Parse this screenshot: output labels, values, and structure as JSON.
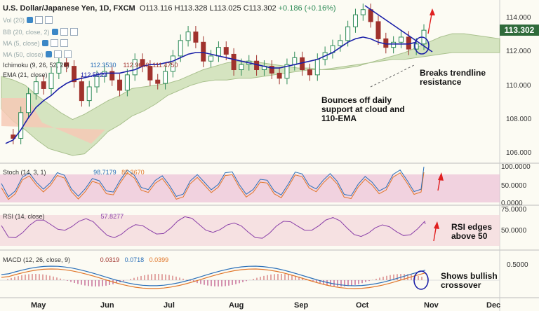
{
  "header": {
    "symbol": "U.S. Dollar/Japanese Yen, 1D, FXCM",
    "open": "O113.116",
    "high": "H113.328",
    "low": "L113.025",
    "close": "C113.302",
    "change": "+0.186 (+0.16%)"
  },
  "indicators_panel": [
    {
      "label": "Vol (20)"
    },
    {
      "label": "BB (20, close, 2)"
    },
    {
      "label": "MA (5, close)"
    },
    {
      "label": "MA (50, close)"
    }
  ],
  "ichimoku": {
    "label": "Ichimoku (9, 26, 52, 26)",
    "v1": "112.3530",
    "v2": "112.9640",
    "v3": "111.4750"
  },
  "ema": {
    "label": "EMA (21, close)",
    "value": "112.5929"
  },
  "stoch": {
    "label": "Stoch (14, 3, 1)",
    "k": "98.7179",
    "d": "85.3670"
  },
  "rsi": {
    "label": "RSI (14, close)",
    "value": "57.8277"
  },
  "macd": {
    "label": "MACD (12, 26, close, 9)",
    "v1": "0.0319",
    "v2": "0.0718",
    "v3": "0.0399"
  },
  "price_tag": "113.302",
  "annotations": {
    "trendline": "Breaks trendline resistance",
    "support": "Bounces off daily support at cloud and 110-EMA",
    "rsi": "RSI edges above 50",
    "macd": "Shows bullish crossover"
  },
  "colors": {
    "up": "#2e8b57",
    "down": "#a0322d",
    "ema": "#1a1fa8",
    "cloud": "#cfe0b8",
    "cloud_red": "#f6c9b5",
    "arrow": "#e02020"
  },
  "chart_data": {
    "type": "candlestick",
    "title": "U.S. Dollar/Japanese Yen, 1D, FXCM",
    "x_months": [
      "May",
      "Jun",
      "Jul",
      "Aug",
      "Sep",
      "Oct",
      "Nov",
      "Dec"
    ],
    "price_axis": {
      "ylim": [
        105.2,
        114.8
      ],
      "ticks": [
        "114.000",
        "112.000",
        "110.000",
        "108.000",
        "106.000"
      ]
    },
    "close_path": [
      107.2,
      107.0,
      108.5,
      109.6,
      110.3,
      109.9,
      110.8,
      111.4,
      111.2,
      110.3,
      109.2,
      110.0,
      110.6,
      110.9,
      110.4,
      109.8,
      110.7,
      111.6,
      111.2,
      110.4,
      110.2,
      110.9,
      111.8,
      112.7,
      113.2,
      112.6,
      111.5,
      111.8,
      112.3,
      111.9,
      111.0,
      111.3,
      111.5,
      111.0,
      111.2,
      110.8,
      110.5,
      111.3,
      111.7,
      111.0,
      110.7,
      111.6,
      112.0,
      112.4,
      112.7,
      113.5,
      114.2,
      114.5,
      113.8,
      112.8,
      112.3,
      112.6,
      112.9,
      112.2,
      112.5,
      113.3
    ],
    "ema21_path": [
      106.7,
      106.9,
      107.5,
      108.2,
      108.8,
      109.2,
      109.5,
      109.9,
      110.2,
      110.4,
      110.5,
      110.6,
      110.7,
      110.8,
      110.8,
      110.8,
      110.9,
      111.0,
      111.2,
      111.3,
      111.3,
      111.4,
      111.5,
      111.7,
      111.9,
      112.0,
      112.0,
      111.9,
      111.8,
      111.7,
      111.6,
      111.5,
      111.4,
      111.3,
      111.2,
      111.1,
      111.1,
      111.2,
      111.3,
      111.4,
      111.5,
      111.6,
      111.8,
      112.0,
      112.3,
      112.6,
      112.8,
      112.9,
      112.8,
      112.6,
      112.5,
      112.5,
      112.5,
      112.5,
      112.6
    ],
    "cloud_upper": [
      110.6,
      110.4,
      110.1,
      109.5,
      109.0,
      108.5,
      108.1,
      108.4,
      108.8,
      109.2,
      109.5,
      109.9,
      110.0,
      110.1,
      110.2,
      110.4,
      110.7,
      111.0,
      111.2,
      111.4,
      111.5,
      111.5,
      111.4,
      111.3,
      111.2,
      111.1,
      111.1,
      111.0,
      111.0,
      111.1,
      111.2,
      111.4,
      111.6,
      111.8,
      112.0,
      112.3,
      112.6,
      112.9,
      113.1,
      113.1,
      113.0,
      112.9,
      112.8
    ],
    "cloud_lower": [
      108.7,
      108.0,
      107.5,
      106.9,
      106.4,
      106.2,
      106.0,
      106.1,
      106.7,
      107.4,
      107.8,
      108.3,
      108.6,
      109.0,
      109.5,
      109.8,
      110.1,
      110.3,
      110.4,
      110.4,
      110.5,
      110.5,
      110.6,
      110.7,
      110.8,
      110.9,
      111.0,
      111.0,
      111.1,
      111.2,
      111.3,
      111.4,
      111.5,
      111.6,
      111.6,
      111.7,
      111.8,
      111.9,
      112.0,
      112.0,
      112.0,
      112.0,
      112.0
    ],
    "stoch": {
      "ylim": [
        0,
        100
      ],
      "ticks": [
        "100.0000",
        "50.0000",
        "0.0000"
      ],
      "k_last": 98.7179,
      "d_last": 85.367
    },
    "rsi": {
      "ylim": [
        25,
        75
      ],
      "ticks": [
        "75.0000",
        "50.0000"
      ],
      "last": 57.8277
    },
    "macd": {
      "ticks": [
        "0.5000"
      ],
      "macd_last": 0.0319,
      "signal_last": 0.0718,
      "hist_last": 0.0399
    }
  }
}
